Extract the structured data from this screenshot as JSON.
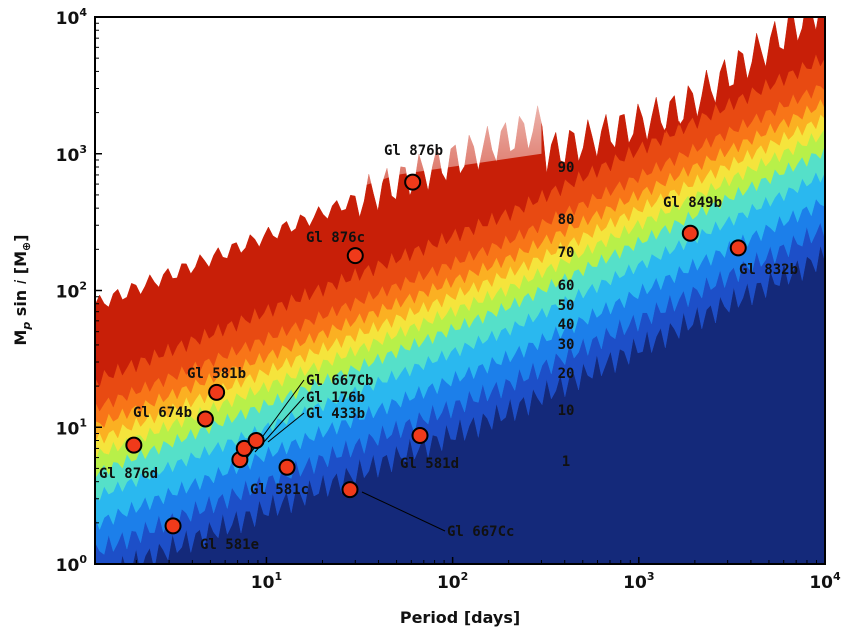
{
  "chart_data": {
    "type": "scatter",
    "xlabel": "Period [days]",
    "ylabel_main": "M",
    "ylabel_sub": "p",
    "ylabel_mid": " sin ",
    "ylabel_italic": "i",
    "ylabel_bracket_open": " [M",
    "ylabel_earth": "⊕",
    "ylabel_bracket_close": "]",
    "x_scale": "log",
    "y_scale": "log",
    "xlim": [
      1.2,
      10000
    ],
    "ylim": [
      1,
      10000
    ],
    "x_ticks": [
      {
        "base": "10",
        "exp": "1",
        "value": 10
      },
      {
        "base": "10",
        "exp": "2",
        "value": 100
      },
      {
        "base": "10",
        "exp": "3",
        "value": 1000
      },
      {
        "base": "10",
        "exp": "4",
        "value": 10000
      }
    ],
    "y_ticks": [
      {
        "base": "10",
        "exp": "0",
        "value": 1
      },
      {
        "base": "10",
        "exp": "1",
        "value": 10
      },
      {
        "base": "10",
        "exp": "2",
        "value": 100
      },
      {
        "base": "10",
        "exp": "3",
        "value": 1000
      },
      {
        "base": "10",
        "exp": "4",
        "value": 10000
      }
    ],
    "contour_levels": [
      "90",
      "80",
      "70",
      "60",
      "50",
      "40",
      "30",
      "20",
      "10",
      "1"
    ],
    "contour_colors": [
      "#14297a",
      "#1d4fc8",
      "#1c7fea",
      "#2ab8ef",
      "#55e0c9",
      "#b8f049",
      "#f5e43c",
      "#fbb022",
      "#f87518",
      "#e84a12",
      "#c81f08"
    ],
    "planets": [
      {
        "name": "Gl 876b",
        "period": 61,
        "mass": 620
      },
      {
        "name": "Gl 876c",
        "period": 30,
        "mass": 180
      },
      {
        "name": "Gl 849b",
        "period": 1890,
        "mass": 262
      },
      {
        "name": "Gl 832b",
        "period": 3420,
        "mass": 205
      },
      {
        "name": "Gl 581b",
        "period": 5.4,
        "mass": 18
      },
      {
        "name": "Gl 674b",
        "period": 4.7,
        "mass": 11.5
      },
      {
        "name": "Gl 876d",
        "period": 1.94,
        "mass": 7.4
      },
      {
        "name": "Gl 667Cb",
        "period": 7.2,
        "mass": 5.8
      },
      {
        "name": "Gl 176b",
        "period": 7.6,
        "mass": 7.0
      },
      {
        "name": "Gl 433b",
        "period": 8.8,
        "mass": 8.0
      },
      {
        "name": "Gl 581c",
        "period": 12.9,
        "mass": 5.1
      },
      {
        "name": "Gl 581d",
        "period": 66.8,
        "mass": 8.7
      },
      {
        "name": "Gl 667Cc",
        "period": 28.1,
        "mass": 3.5
      },
      {
        "name": "Gl 581e",
        "period": 3.15,
        "mass": 1.9
      }
    ]
  }
}
